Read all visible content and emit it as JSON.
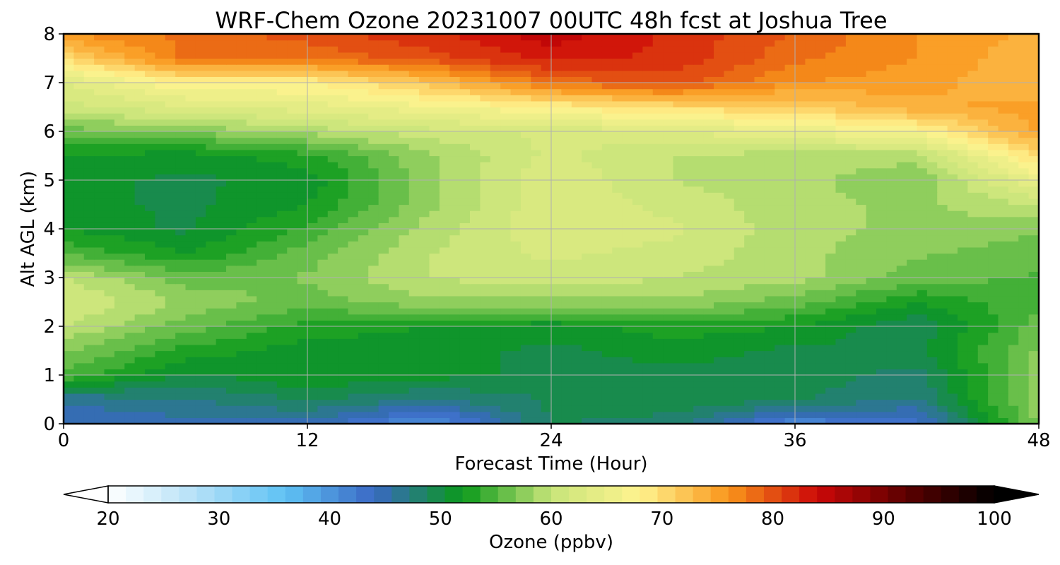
{
  "chart_data": {
    "type": "heatmap",
    "title": "WRF-Chem Ozone  20231007 00UTC 48h fcst at Joshua Tree",
    "xlabel": "Forecast Time (Hour)",
    "ylabel": "Alt AGL (km)",
    "xlim": [
      0,
      48
    ],
    "ylim": [
      0,
      8
    ],
    "x_ticks": [
      0,
      12,
      24,
      36,
      48
    ],
    "y_ticks": [
      0,
      1,
      2,
      3,
      4,
      5,
      6,
      7,
      8
    ],
    "grid": true,
    "x": [
      0,
      6,
      12,
      18,
      24,
      30,
      36,
      42,
      48
    ],
    "y": [
      0,
      0.5,
      1,
      1.5,
      2,
      2.5,
      3,
      3.5,
      4,
      4.5,
      5,
      5.5,
      6,
      6.5,
      7,
      7.5,
      8
    ],
    "z": [
      [
        44,
        45,
        45,
        40,
        49,
        48,
        41,
        43,
        57
      ],
      [
        46,
        47,
        49,
        47,
        49,
        50,
        49,
        47,
        58
      ],
      [
        55,
        50,
        52,
        51,
        50,
        50,
        50,
        48,
        58
      ],
      [
        57,
        53,
        51,
        51,
        50,
        51,
        50,
        50,
        57
      ],
      [
        60,
        56,
        53,
        52,
        51,
        53,
        52,
        49,
        56
      ],
      [
        62,
        58,
        56,
        58,
        58,
        58,
        56,
        52,
        55
      ],
      [
        60,
        56,
        57,
        60,
        61,
        60,
        59,
        56,
        55
      ],
      [
        55,
        52,
        56,
        60,
        62,
        61,
        59,
        57,
        56
      ],
      [
        52,
        50,
        54,
        59,
        63,
        62,
        59,
        58,
        57
      ],
      [
        51,
        50,
        52,
        58,
        63,
        61,
        59,
        58,
        60
      ],
      [
        51,
        50,
        51,
        58,
        63,
        60,
        59,
        57,
        65
      ],
      [
        52,
        51,
        53,
        58,
        62,
        60,
        59,
        59,
        70
      ],
      [
        56,
        57,
        59,
        61,
        62,
        63,
        65,
        67,
        75
      ],
      [
        61,
        63,
        64,
        66,
        68,
        70,
        71,
        74,
        75
      ],
      [
        63,
        68,
        68,
        72,
        78,
        80,
        76,
        75,
        73
      ],
      [
        70,
        78,
        78,
        80,
        83,
        82,
        78,
        76,
        73
      ],
      [
        76,
        78,
        80,
        82,
        85,
        82,
        79,
        76,
        74
      ]
    ],
    "colorbar": {
      "label": "Ozone  (ppbv)",
      "min": 20,
      "max": 100,
      "ticks": [
        20,
        30,
        40,
        50,
        60,
        70,
        80,
        90,
        100
      ],
      "extend": "both",
      "colors": [
        "#ffffff",
        "#b3e0f7",
        "#5fc2f4",
        "#3a68c4",
        "#0a9a1a",
        "#c8e47a",
        "#fff38f",
        "#f9961b",
        "#cc0808",
        "#5c0000",
        "#000000"
      ]
    }
  }
}
